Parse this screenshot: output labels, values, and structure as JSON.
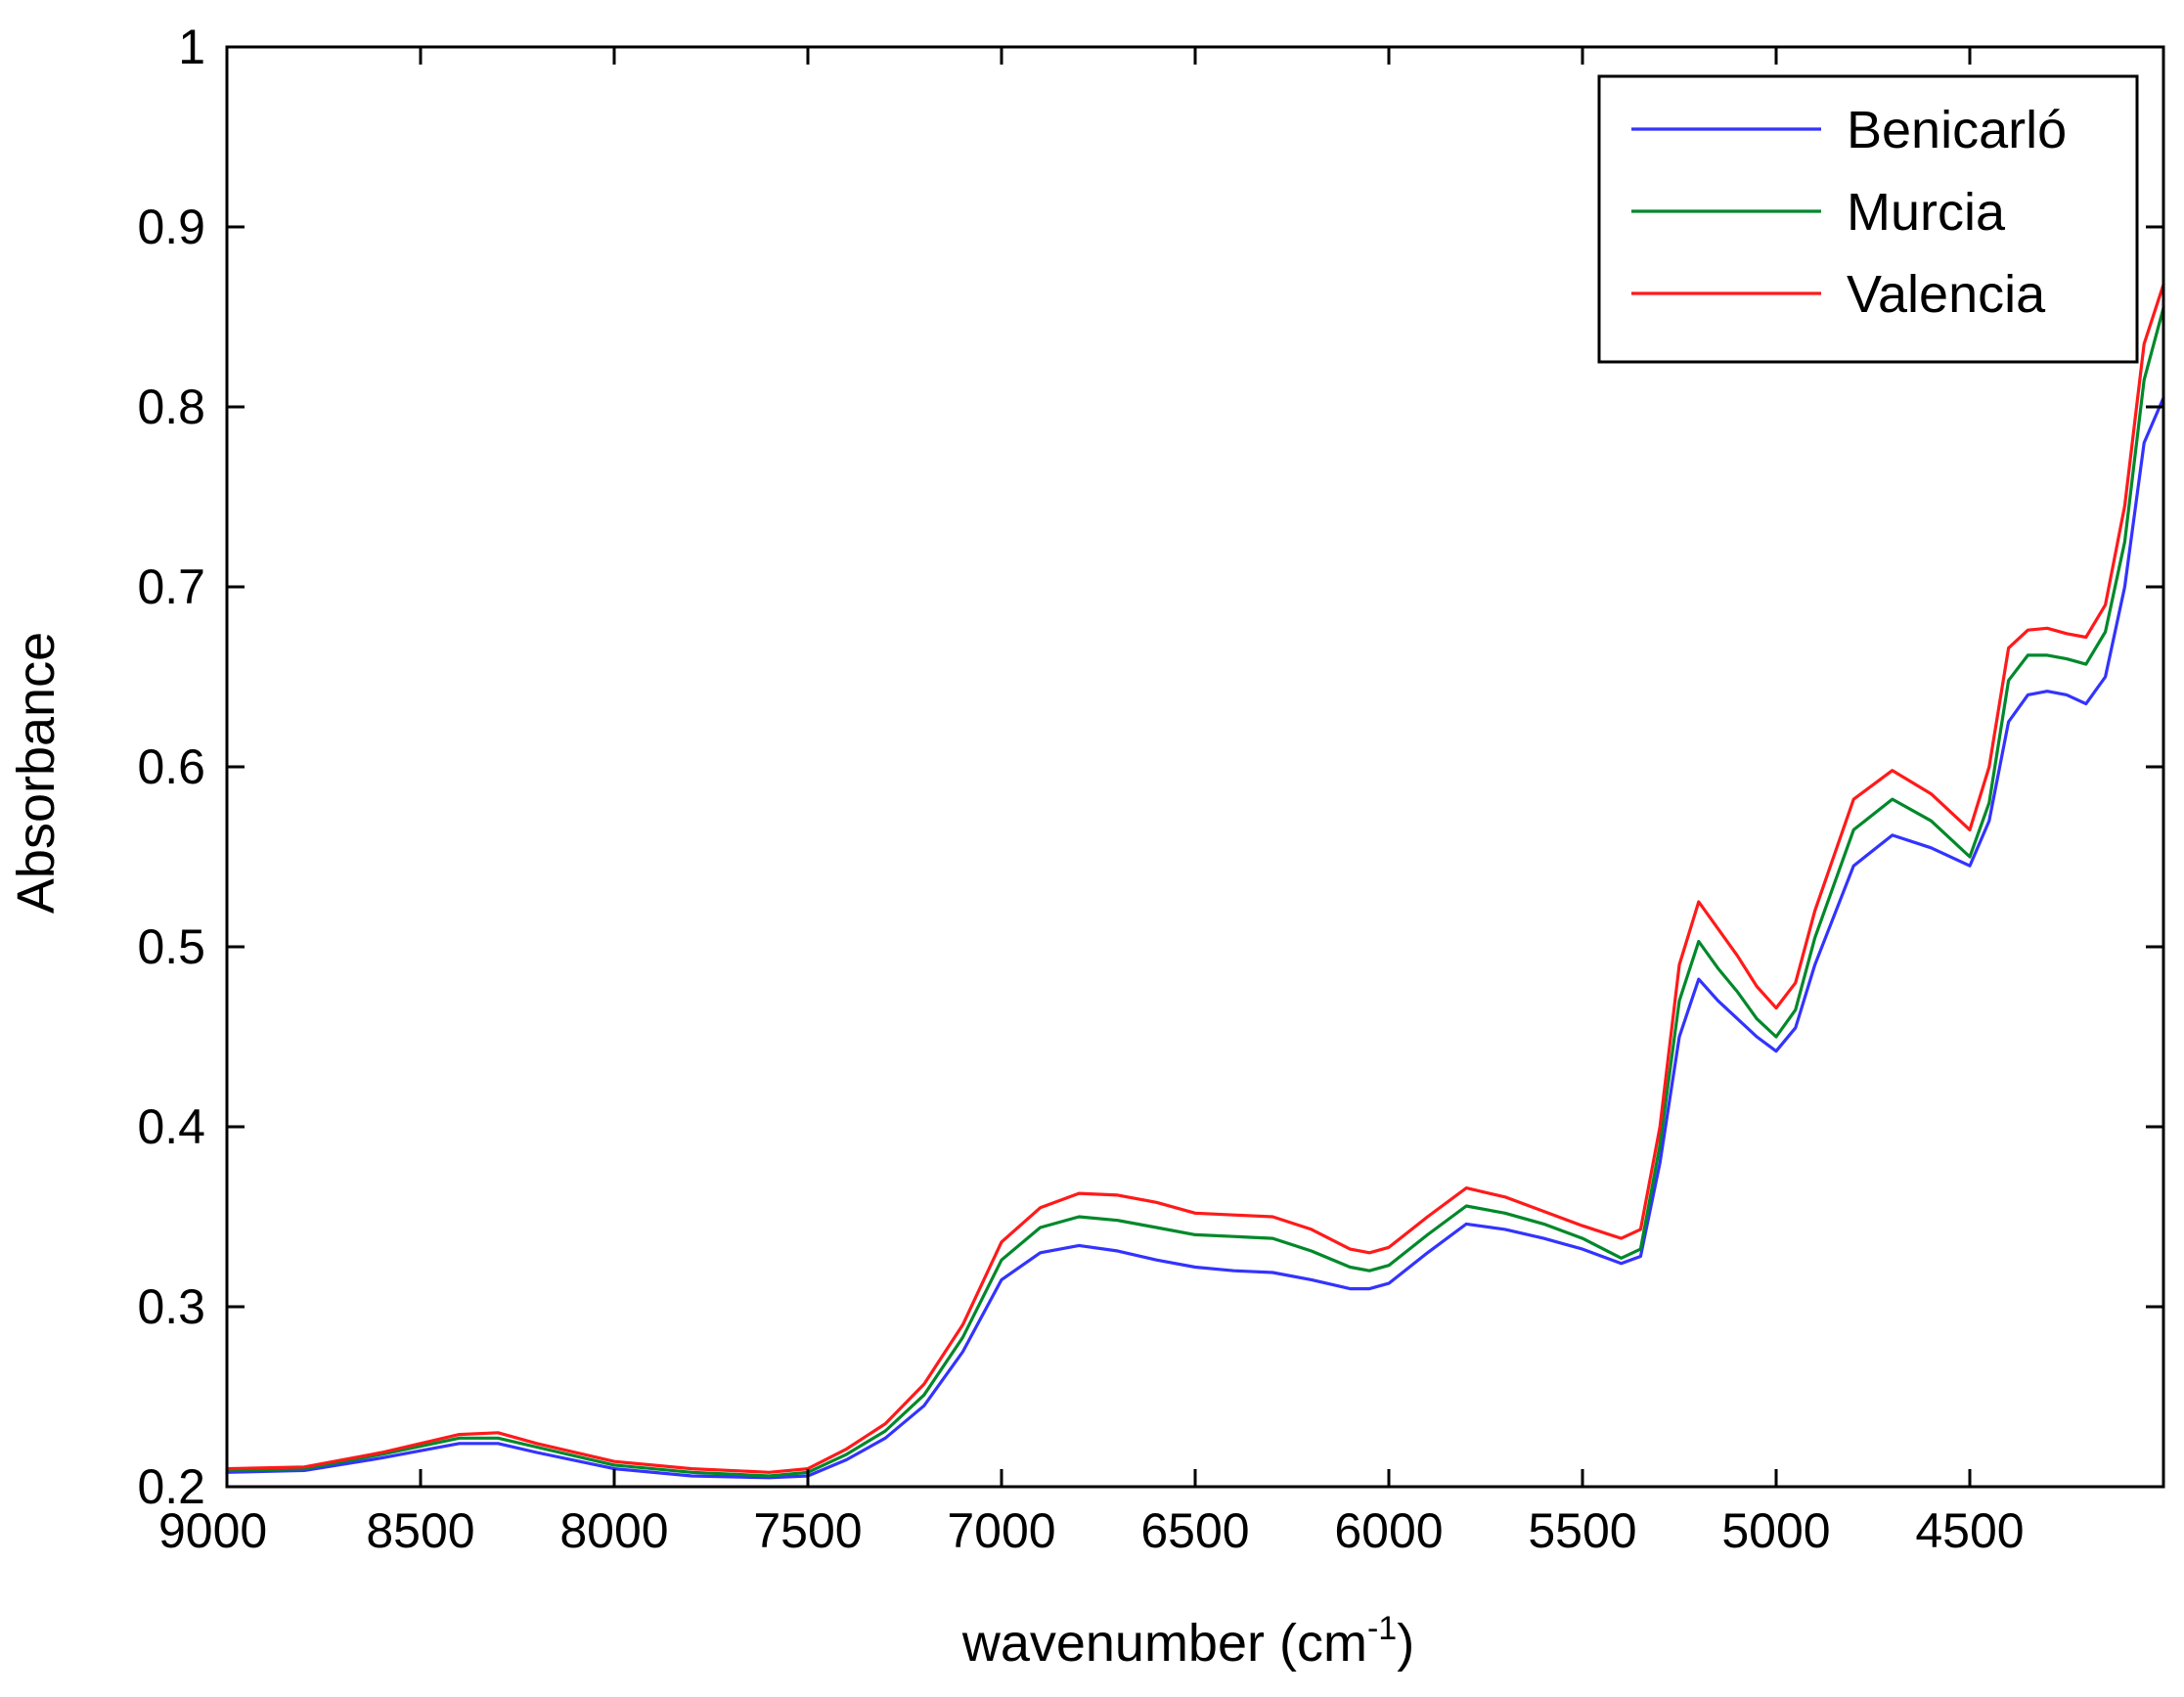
{
  "chart_data": {
    "type": "line",
    "title": "",
    "xlabel": "wavenumber (cm",
    "xlabel_superscript": "-1",
    "xlabel_suffix": ")",
    "ylabel": "Absorbance",
    "xlim": [
      9000,
      4000
    ],
    "ylim": [
      0.2,
      1.0
    ],
    "x_reversed": true,
    "grid": false,
    "legend_position": "top-right",
    "x_ticks": [
      9000,
      8500,
      8000,
      7500,
      7000,
      6500,
      6000,
      5500,
      5000,
      4500
    ],
    "x_tick_labels": [
      "9000",
      "8500",
      "8000",
      "7500",
      "7000",
      "6500",
      "6000",
      "5500",
      "5000",
      "4500"
    ],
    "y_ticks": [
      0.2,
      0.3,
      0.4,
      0.5,
      0.6,
      0.7,
      0.8,
      0.9,
      1.0
    ],
    "y_tick_labels": [
      "0.2",
      "0.3",
      "0.4",
      "0.5",
      "0.6",
      "0.7",
      "0.8",
      "0.9",
      "1"
    ],
    "x": [
      9000,
      8800,
      8600,
      8400,
      8300,
      8200,
      8000,
      7800,
      7600,
      7500,
      7400,
      7300,
      7200,
      7100,
      7000,
      6900,
      6800,
      6700,
      6600,
      6500,
      6400,
      6300,
      6200,
      6100,
      6050,
      6000,
      5900,
      5800,
      5700,
      5600,
      5500,
      5400,
      5350,
      5300,
      5250,
      5200,
      5150,
      5100,
      5050,
      5000,
      4950,
      4900,
      4800,
      4700,
      4600,
      4500,
      4450,
      4400,
      4350,
      4300,
      4250,
      4200,
      4150,
      4100,
      4050,
      4000
    ],
    "series": [
      {
        "name": "Benicarló",
        "color": "#3333ff",
        "values": [
          0.208,
          0.209,
          0.216,
          0.224,
          0.224,
          0.219,
          0.21,
          0.206,
          0.205,
          0.206,
          0.215,
          0.227,
          0.245,
          0.275,
          0.315,
          0.33,
          0.334,
          0.331,
          0.326,
          0.322,
          0.32,
          0.319,
          0.315,
          0.31,
          0.31,
          0.313,
          0.33,
          0.346,
          0.343,
          0.338,
          0.332,
          0.324,
          0.328,
          0.38,
          0.45,
          0.482,
          0.47,
          0.46,
          0.45,
          0.442,
          0.455,
          0.49,
          0.545,
          0.562,
          0.555,
          0.545,
          0.57,
          0.625,
          0.64,
          0.642,
          0.64,
          0.635,
          0.65,
          0.7,
          0.78,
          0.805
        ]
      },
      {
        "name": "Murcia",
        "color": "#00882a",
        "values": [
          0.209,
          0.21,
          0.218,
          0.227,
          0.227,
          0.222,
          0.212,
          0.208,
          0.206,
          0.208,
          0.218,
          0.231,
          0.251,
          0.283,
          0.326,
          0.344,
          0.35,
          0.348,
          0.344,
          0.34,
          0.339,
          0.338,
          0.331,
          0.322,
          0.32,
          0.323,
          0.34,
          0.356,
          0.352,
          0.346,
          0.338,
          0.327,
          0.332,
          0.39,
          0.47,
          0.503,
          0.488,
          0.475,
          0.46,
          0.45,
          0.465,
          0.505,
          0.565,
          0.582,
          0.57,
          0.55,
          0.58,
          0.648,
          0.662,
          0.662,
          0.66,
          0.657,
          0.675,
          0.725,
          0.815,
          0.855
        ]
      },
      {
        "name": "Valencia",
        "color": "#ff1a1a",
        "values": [
          0.21,
          0.211,
          0.219,
          0.229,
          0.23,
          0.224,
          0.214,
          0.21,
          0.208,
          0.21,
          0.221,
          0.235,
          0.257,
          0.29,
          0.336,
          0.355,
          0.363,
          0.362,
          0.358,
          0.352,
          0.351,
          0.35,
          0.343,
          0.332,
          0.33,
          0.333,
          0.35,
          0.366,
          0.361,
          0.353,
          0.345,
          0.338,
          0.343,
          0.4,
          0.49,
          0.525,
          0.51,
          0.495,
          0.478,
          0.466,
          0.48,
          0.52,
          0.582,
          0.598,
          0.585,
          0.565,
          0.6,
          0.666,
          0.676,
          0.677,
          0.674,
          0.672,
          0.69,
          0.745,
          0.835,
          0.868
        ]
      }
    ]
  }
}
